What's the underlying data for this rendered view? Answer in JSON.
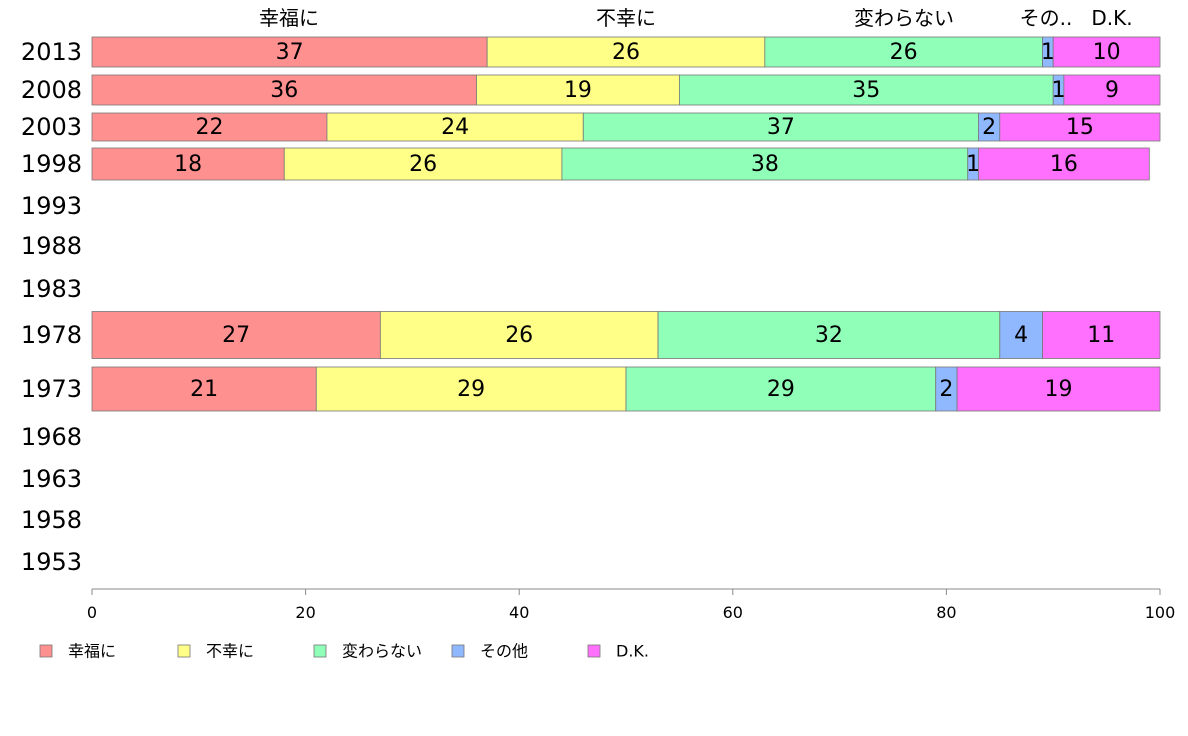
{
  "chart_data": {
    "type": "bar",
    "orientation": "horizontal",
    "stacked": true,
    "categories": [
      "2013",
      "2008",
      "2003",
      "1998",
      "1993",
      "1988",
      "1983",
      "1978",
      "1973",
      "1968",
      "1963",
      "1958",
      "1953"
    ],
    "series": [
      {
        "name": "幸福に",
        "color": "#ff9090",
        "values": [
          37,
          36,
          22,
          18,
          null,
          null,
          null,
          27,
          21,
          null,
          null,
          null,
          null
        ]
      },
      {
        "name": "不幸に",
        "color": "#ffff88",
        "values": [
          26,
          19,
          24,
          26,
          null,
          null,
          null,
          26,
          29,
          null,
          null,
          null,
          null
        ]
      },
      {
        "name": "変わらない",
        "color": "#90ffb8",
        "values": [
          26,
          35,
          37,
          38,
          null,
          null,
          null,
          32,
          29,
          null,
          null,
          null,
          null
        ]
      },
      {
        "name": "その他",
        "color": "#90b8ff",
        "values": [
          1,
          1,
          2,
          1,
          null,
          null,
          null,
          4,
          2,
          null,
          null,
          null,
          null
        ]
      },
      {
        "name": "D.K.",
        "color": "#ff70ff",
        "values": [
          10,
          9,
          15,
          16,
          null,
          null,
          null,
          11,
          19,
          null,
          null,
          null,
          null
        ]
      }
    ],
    "top_headers": [
      "幸福に",
      "不幸に",
      "変わらない",
      "その..",
      "D.K."
    ],
    "xlim": [
      0,
      100
    ],
    "xticks": [
      0,
      20,
      40,
      60,
      80,
      100
    ],
    "grid": false,
    "legend_position": "bottom"
  }
}
